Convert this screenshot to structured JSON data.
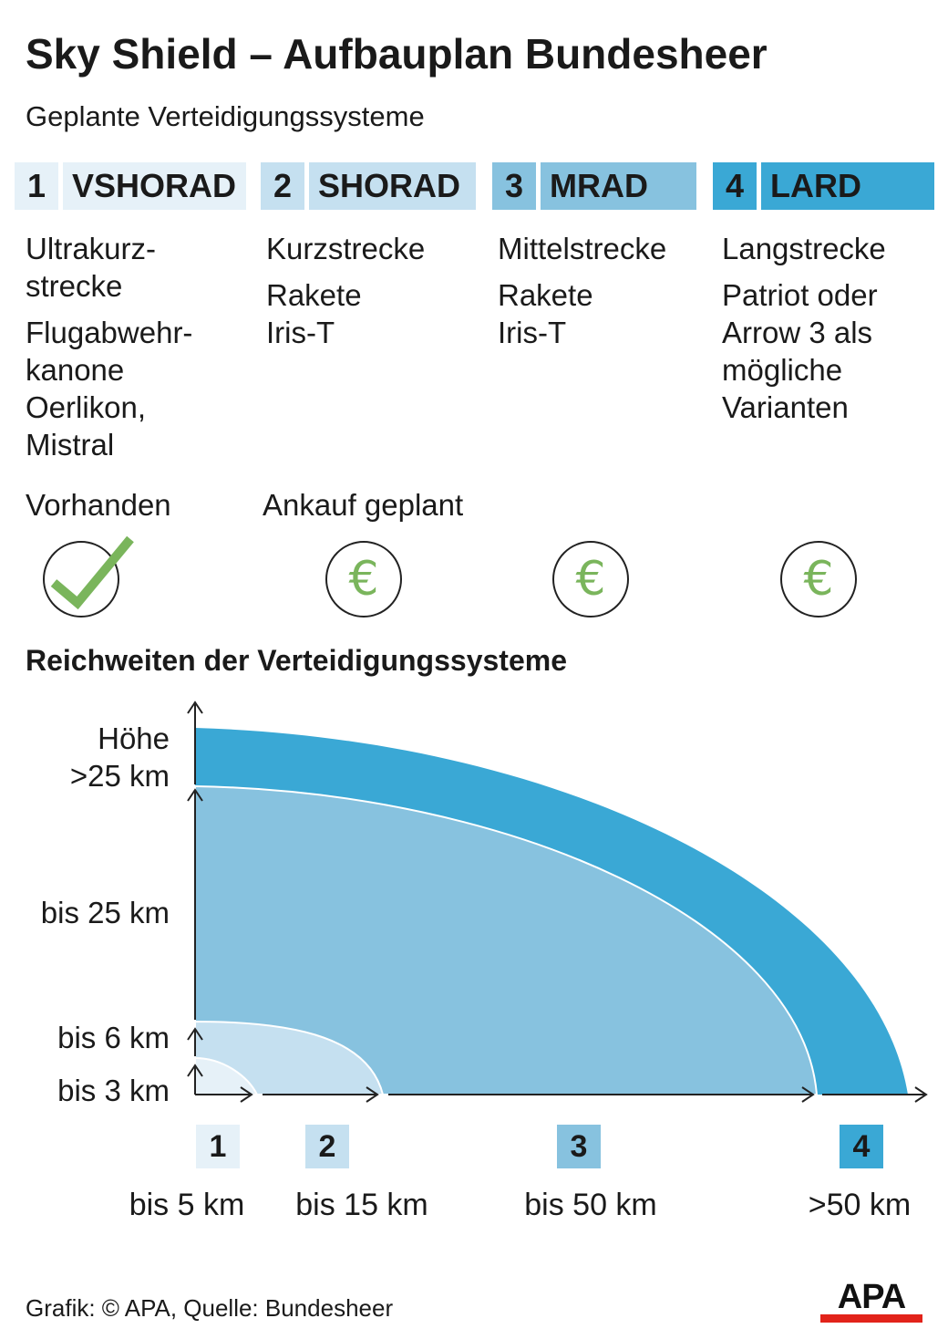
{
  "title": "Sky Shield – Aufbauplan Bundesheer",
  "subtitle": "Geplante Verteidigungssysteme",
  "colors": {
    "c1": "#e6f1f8",
    "c2": "#c5e0f0",
    "c3": "#87c2df",
    "c4": "#3aa8d5",
    "euro_green": "#7ab55c",
    "check_green": "#7ab55c"
  },
  "systems": [
    {
      "num": "1",
      "name": "VSHORAD",
      "range_class": "Ultrakurz-\nstrecke",
      "weapons": "Flugabwehr-\nkanone\nOerlikon,\nMistral"
    },
    {
      "num": "2",
      "name": "SHORAD",
      "range_class": "Kurzstrecke",
      "weapons": "Rakete\nIris-T"
    },
    {
      "num": "3",
      "name": "MRAD",
      "range_class": "Mittelstrecke",
      "weapons": "Rakete\nIris-T"
    },
    {
      "num": "4",
      "name": "LARD",
      "range_class": "Langstrecke",
      "weapons": "Patriot oder\nArrow 3 als\nmögliche\nVarianten"
    }
  ],
  "status": {
    "existing": "Vorhanden",
    "planned": "Ankauf geplant",
    "icons": [
      "check-icon",
      "euro-icon",
      "euro-icon",
      "euro-icon"
    ],
    "euro_symbol": "€"
  },
  "range_title": "Reichweiten der Verteidigungssysteme",
  "heights": [
    {
      "system": "4",
      "label": "Höhe\n>25 km"
    },
    {
      "system": "3",
      "label": "bis 25 km"
    },
    {
      "system": "2",
      "label": "bis 6 km"
    },
    {
      "system": "1",
      "label": "bis 3 km"
    }
  ],
  "ranges": [
    {
      "system": "1",
      "label": "bis 5 km"
    },
    {
      "system": "2",
      "label": "bis 15 km"
    },
    {
      "system": "3",
      "label": "bis 50 km"
    },
    {
      "system": "4",
      "label": ">50 km"
    }
  ],
  "footer": "Grafik: © APA, Quelle: Bundesheer",
  "logo_text": "APA"
}
